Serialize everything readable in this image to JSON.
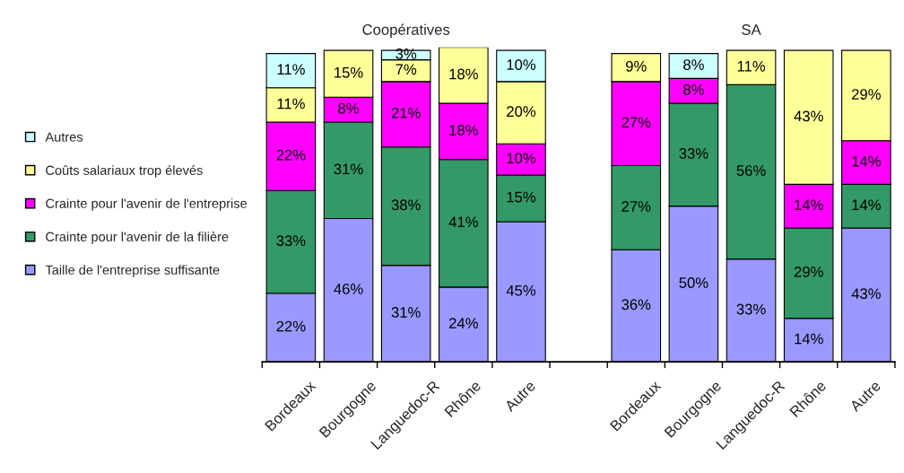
{
  "chart_data": {
    "type": "bar",
    "stacked": true,
    "categories": [
      "Bordeaux",
      "Bourgogne",
      "Languedoc-R",
      "Rhône",
      "Autre",
      null,
      "Bordeaux",
      "Bourgogne",
      "Languedoc-R",
      "Rhône",
      "Autre"
    ],
    "annotations": [
      "Coopératives",
      "SA"
    ],
    "legend": "left",
    "series": [
      {
        "name": "Taille de l'entreprise suffisante",
        "color": "#9999ff",
        "values": [
          22,
          46,
          31,
          24,
          45,
          null,
          36,
          50,
          33,
          14,
          43
        ],
        "value_labels": [
          "22%",
          "46%",
          "31%",
          "24%",
          "45%",
          null,
          "36%",
          "50%",
          "33%",
          "14%",
          "43%"
        ]
      },
      {
        "name": "Crainte pour l'avenir de la filière",
        "color": "#339966",
        "values": [
          33,
          31,
          38,
          41,
          15,
          null,
          27,
          33,
          56,
          29,
          14
        ],
        "value_labels": [
          "33%",
          "31%",
          "38%",
          "41%",
          "15%",
          null,
          "27%",
          "33%",
          "56%",
          "29%",
          "14%"
        ]
      },
      {
        "name": "Crainte pour l'avenir de l'entreprise",
        "color": "#ff00ff",
        "values": [
          22,
          8,
          21,
          18,
          10,
          null,
          27,
          8,
          null,
          14,
          14
        ],
        "value_labels": [
          "22%",
          "8%",
          "21%",
          "18%",
          "10%",
          null,
          "27%",
          "8%",
          null,
          "14%",
          "14%"
        ]
      },
      {
        "name": "Coûts salariaux trop élevés",
        "color": "#ffff99",
        "values": [
          11,
          15,
          7,
          18,
          20,
          null,
          9,
          null,
          11,
          43,
          29
        ],
        "value_labels": [
          "11%",
          "15%",
          "7%",
          "18%",
          "20%",
          null,
          "9%",
          null,
          "11%",
          "43%",
          "29%"
        ]
      },
      {
        "name": "Autres",
        "color": "#ccffff",
        "values": [
          11,
          null,
          3,
          null,
          10,
          null,
          null,
          8,
          null,
          null,
          null
        ],
        "value_labels": [
          "11%",
          null,
          "3%",
          null,
          "10%",
          null,
          null,
          "8%",
          null,
          null,
          null
        ]
      }
    ]
  }
}
